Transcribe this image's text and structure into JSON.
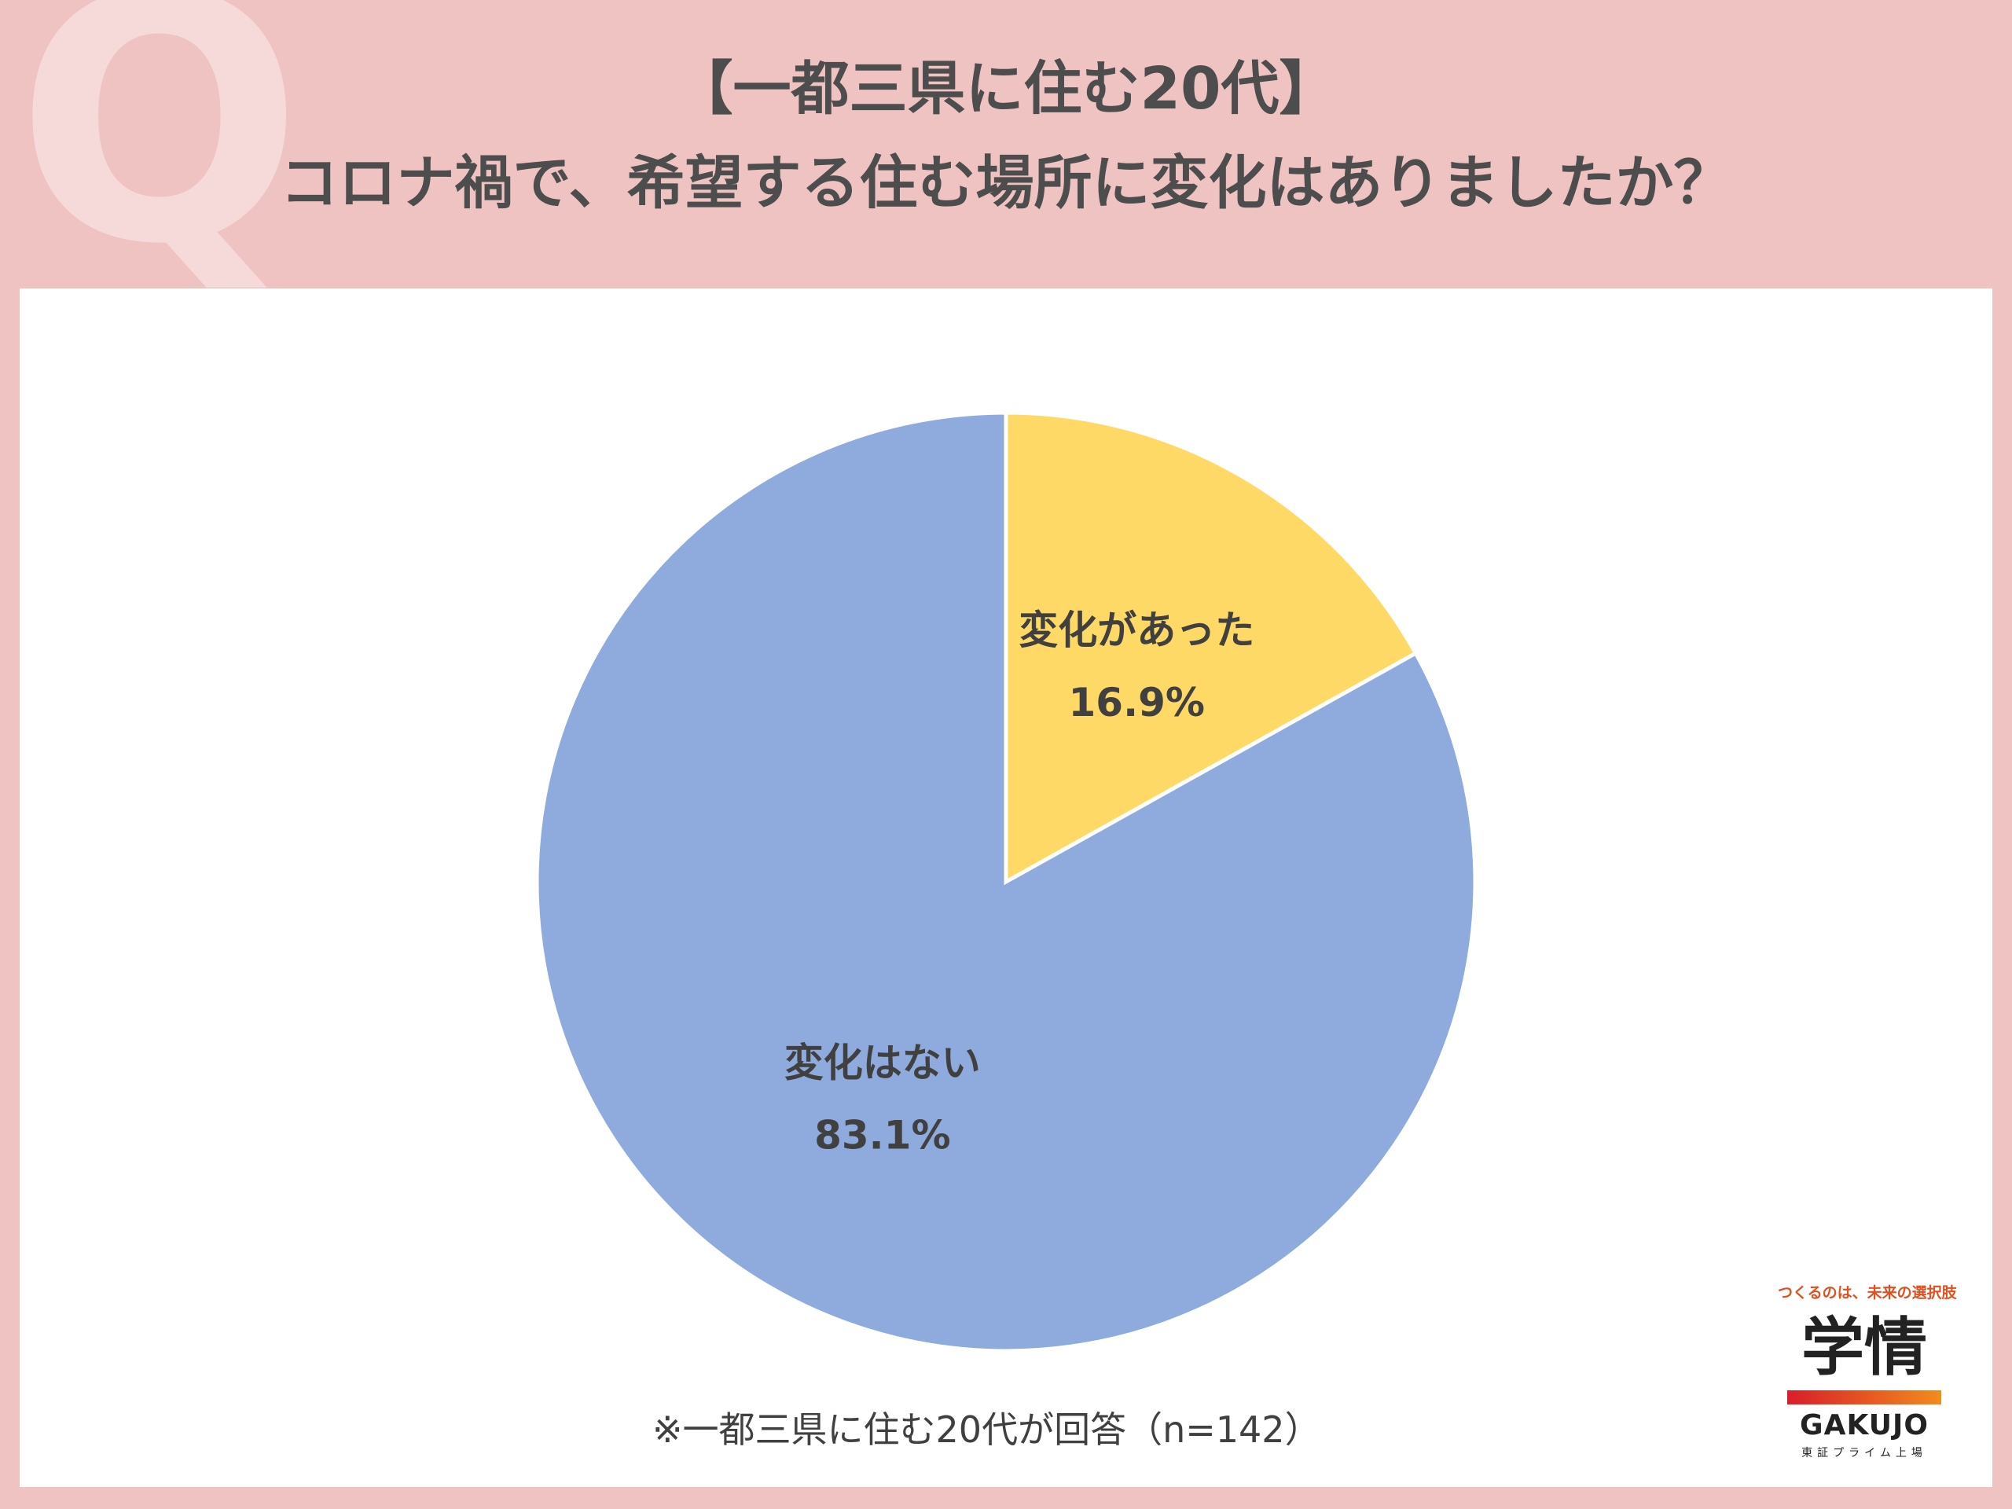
{
  "q_mark": "Q",
  "title": {
    "line1": "【一都三県に住む20代】",
    "line2": "コロナ禍で、希望する住む場所に変化はありましたか？"
  },
  "chart_data": {
    "type": "pie",
    "slices": [
      {
        "label": "変化があった",
        "value": 16.9,
        "value_label": "16.9%",
        "color": "#ffd966"
      },
      {
        "label": "変化はない",
        "value": 83.1,
        "value_label": "83.1%",
        "color": "#8faadc"
      }
    ],
    "start": "12 o'clock, clockwise"
  },
  "note": "※一都三県に住む20代が回答（n=142）",
  "logo": {
    "tagline": "つくるのは、未来の選択肢",
    "kanji": "学情",
    "english": "GAKUJO",
    "sub": "東証プライム上場"
  }
}
